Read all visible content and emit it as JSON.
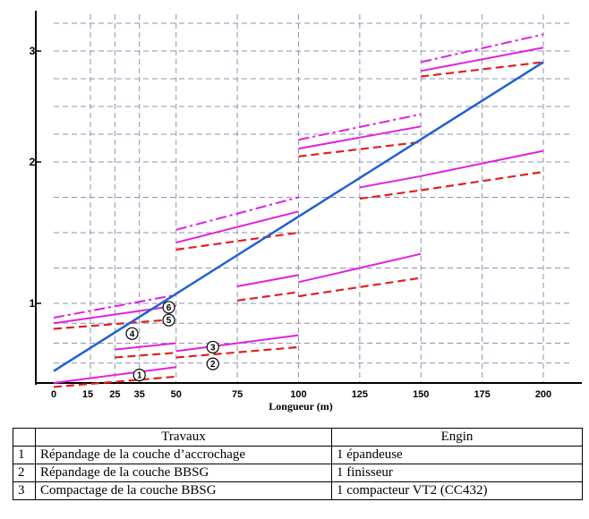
{
  "chart_data": {
    "type": "line",
    "xlabel": "Longueur (m)",
    "ylabel": "",
    "x_ticks": [
      0,
      15,
      25,
      35,
      50,
      75,
      100,
      125,
      150,
      175,
      200
    ],
    "y_ticks": [
      1,
      2,
      3
    ],
    "xlim": [
      0,
      210
    ],
    "ylim": [
      0,
      3.4
    ],
    "grid": true,
    "progress_line": {
      "name": "",
      "color": "#2060d0",
      "x": [
        0,
        200
      ],
      "y": [
        0.15,
        2.9
      ]
    },
    "step_series": [
      {
        "marker": "1",
        "style": "pink-solid",
        "segments": [
          [
            0,
            50,
            0.0,
            0.2
          ],
          [
            50,
            100,
            0.4,
            0.6
          ],
          [
            100,
            150,
            1.15,
            1.35
          ],
          [
            150,
            200,
            1.9,
            2.1
          ]
        ]
      },
      {
        "marker": "2",
        "style": "red-dashed",
        "segments": [
          [
            0,
            50,
            -0.05,
            0.08
          ],
          [
            50,
            100,
            0.32,
            0.45
          ],
          [
            100,
            150,
            1.05,
            1.18
          ],
          [
            150,
            200,
            1.8,
            1.93
          ]
        ]
      },
      {
        "marker": "4",
        "style": "red-dashed",
        "segments": [
          [
            0,
            50,
            0.68,
            0.8
          ],
          [
            50,
            100,
            1.38,
            1.5
          ],
          [
            100,
            150,
            2.05,
            2.18
          ],
          [
            150,
            200,
            2.77,
            2.9
          ]
        ]
      },
      {
        "marker": "5",
        "style": "pink-solid",
        "segments": [
          [
            0,
            50,
            0.75,
            0.97
          ],
          [
            50,
            100,
            1.43,
            1.65
          ],
          [
            100,
            150,
            2.12,
            2.32
          ],
          [
            150,
            200,
            2.82,
            3.03
          ]
        ]
      },
      {
        "marker": "6",
        "style": "pink-dashdot",
        "segments": [
          [
            0,
            50,
            0.82,
            1.06
          ],
          [
            50,
            100,
            1.52,
            1.75
          ],
          [
            100,
            150,
            2.2,
            2.43
          ],
          [
            150,
            200,
            2.9,
            3.15
          ]
        ]
      },
      {
        "marker": "",
        "style": "pink-solid",
        "segments": [
          [
            25,
            50,
            0.42,
            0.5
          ],
          [
            75,
            100,
            1.12,
            1.2
          ],
          [
            125,
            150,
            1.82,
            1.9
          ]
        ]
      },
      {
        "marker": "",
        "style": "red-dashed",
        "segments": [
          [
            25,
            50,
            0.32,
            0.38
          ],
          [
            75,
            100,
            1.02,
            1.08
          ],
          [
            125,
            150,
            1.74,
            1.8
          ]
        ]
      }
    ],
    "markers": [
      {
        "label": "1",
        "x": 35,
        "y": 0.1
      },
      {
        "label": "2",
        "x": 65,
        "y": 0.24
      },
      {
        "label": "3",
        "x": 65,
        "y": 0.45
      },
      {
        "label": "4",
        "x": 32,
        "y": 0.62
      },
      {
        "label": "5",
        "x": 47,
        "y": 0.79
      },
      {
        "label": "6",
        "x": 47,
        "y": 0.95
      }
    ],
    "colors": {
      "pink": "#e020e0",
      "red": "#e02020",
      "blue": "#2060d0",
      "grid": "#9090b0"
    }
  },
  "legend_table": {
    "headers": [
      "",
      "Travaux",
      "Engin"
    ],
    "rows": [
      [
        "1",
        "Répandage de la couche d’accrochage",
        "1 épandeuse"
      ],
      [
        "2",
        "Répandage de la couche BBSG",
        "1 finisseur"
      ],
      [
        "3",
        "Compactage de la couche BBSG",
        "1 compacteur VT2 (CC432)"
      ]
    ]
  }
}
